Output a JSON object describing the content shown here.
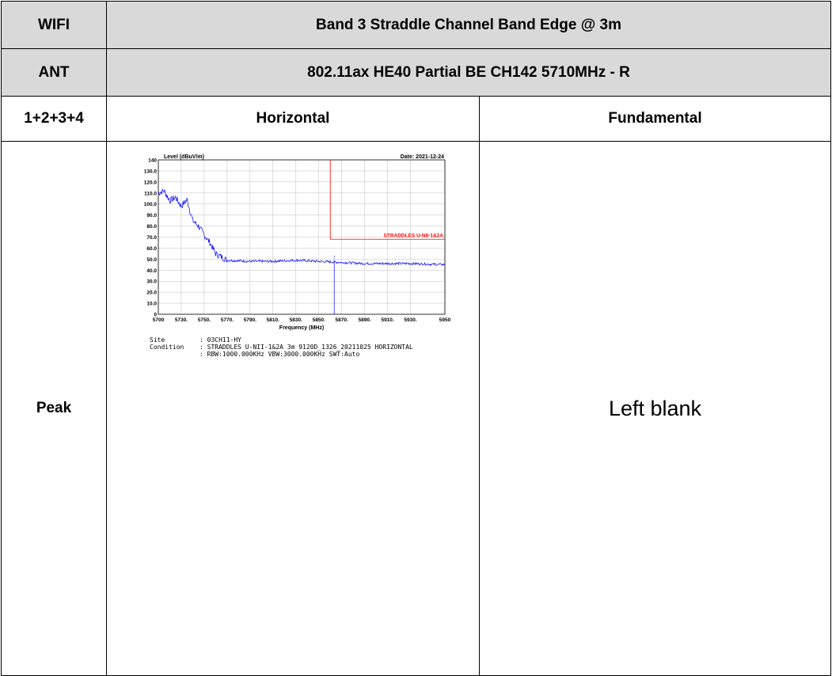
{
  "table": {
    "row1": {
      "label": "WIFI",
      "value": "Band 3 Straddle Channel Band Edge @ 3m"
    },
    "row2": {
      "label": "ANT",
      "value": "802.11ax HE40 Partial BE CH142 5710MHz - R"
    },
    "row3": {
      "label": "1+2+3+4",
      "col2": "Horizontal",
      "col3": "Fundamental"
    },
    "row4": {
      "label": "Peak",
      "blank_text": "Left blank"
    }
  },
  "plot": {
    "date": "Date: 2021-12-24",
    "limit_label": "STRADDLES U-NII-1&2A",
    "site_label": "Site",
    "site_value": ": 03CH11-HY",
    "condition_label": "Condition",
    "condition_value": ": STRADDLES U-NII-1&2A 3m 9120D_1326_20211025 HORIZONTAL",
    "condition_value2": ": RBW:1000.000KHz VBW:3000.000KHz SWT:Auto",
    "colors": {
      "trace": "#0000ff",
      "limit": "#ff0000",
      "grid": "#c0c0c0"
    }
  },
  "chart_data": {
    "type": "line",
    "title": "",
    "ylabel": "Level (dBuV/m)",
    "xlabel": "Frequency (MHz)",
    "xlim": [
      5700,
      5950
    ],
    "ylim": [
      0,
      140
    ],
    "x_ticks": [
      "5700",
      "5730.",
      "5750.",
      "5770.",
      "5790.",
      "5810.",
      "5830.",
      "5850.",
      "5870.",
      "5890.",
      "5910.",
      "5930.",
      "5950"
    ],
    "y_ticks": [
      "0",
      "10.0",
      "20.0",
      "30.0",
      "40.0",
      "50.0",
      "60.0",
      "70.0",
      "80.0",
      "90.0",
      "100.0",
      "110.0",
      "120.0",
      "130.0",
      "140"
    ],
    "grid": true,
    "series": [
      {
        "x": [
          5700,
          5705,
          5710,
          5715,
          5720,
          5725,
          5730,
          5735,
          5740,
          5745,
          5750,
          5760,
          5780,
          5800,
          5820,
          5840,
          5860,
          5880,
          5900,
          5920,
          5950
        ],
        "y": [
          110,
          112,
          103,
          106,
          98,
          104,
          85,
          80,
          72,
          65,
          55,
          49,
          48,
          48,
          49,
          48,
          47,
          46,
          46,
          46,
          45
        ]
      }
    ],
    "limit_line": {
      "x_start": 5850,
      "x_end": 5950,
      "y": 68
    },
    "marker": {
      "x": 5850,
      "y": 49
    }
  }
}
